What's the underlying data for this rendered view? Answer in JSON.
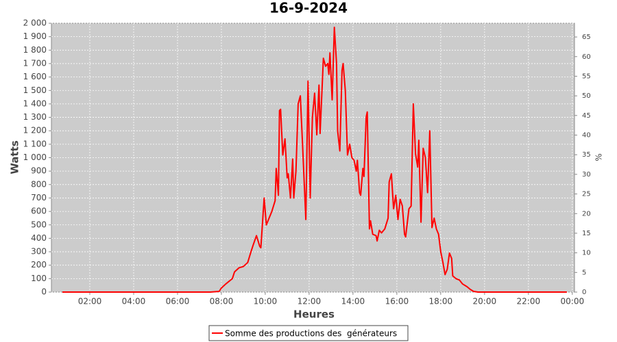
{
  "chart_data": {
    "type": "line",
    "title": "16-9-2024",
    "x_label": "Heures",
    "y_label": "Watts",
    "y2_label": "%",
    "x": [
      0.75,
      7.5,
      7.9,
      8.0,
      8.2,
      8.5,
      8.6,
      8.8,
      9.0,
      9.2,
      9.35,
      9.45,
      9.6,
      9.75,
      9.8,
      9.95,
      10.05,
      10.15,
      10.3,
      10.45,
      10.5,
      10.6,
      10.65,
      10.7,
      10.8,
      10.9,
      11.0,
      11.05,
      11.15,
      11.25,
      11.3,
      11.4,
      11.5,
      11.6,
      11.7,
      11.85,
      11.95,
      12.05,
      12.15,
      12.25,
      12.35,
      12.45,
      12.5,
      12.6,
      12.65,
      12.75,
      12.85,
      12.9,
      12.95,
      13.05,
      13.15,
      13.25,
      13.3,
      13.4,
      13.5,
      13.55,
      13.65,
      13.75,
      13.85,
      13.95,
      14.05,
      14.15,
      14.2,
      14.3,
      14.35,
      14.45,
      14.5,
      14.6,
      14.65,
      14.75,
      14.8,
      14.9,
      15.05,
      15.1,
      15.2,
      15.3,
      15.45,
      15.6,
      15.65,
      15.75,
      15.85,
      15.95,
      16.05,
      16.15,
      16.25,
      16.35,
      16.4,
      16.55,
      16.65,
      16.75,
      16.85,
      16.95,
      17.0,
      17.1,
      17.2,
      17.3,
      17.4,
      17.5,
      17.6,
      17.7,
      17.8,
      17.9,
      18.0,
      18.1,
      18.2,
      18.3,
      18.4,
      18.5,
      18.55,
      18.7,
      18.85,
      19.0,
      19.2,
      19.35,
      19.5,
      19.7,
      23.75
    ],
    "series": [
      {
        "name": "Somme des productions des  générateurs",
        "color": "#ff0000",
        "values": [
          0,
          0,
          5,
          30,
          60,
          100,
          150,
          180,
          190,
          220,
          300,
          350,
          420,
          340,
          330,
          700,
          500,
          540,
          600,
          680,
          920,
          720,
          1350,
          1360,
          1020,
          1140,
          850,
          880,
          700,
          990,
          700,
          900,
          1400,
          1460,
          1100,
          540,
          1570,
          700,
          1300,
          1480,
          1170,
          1540,
          1180,
          1550,
          1740,
          1680,
          1700,
          1620,
          1780,
          1430,
          1970,
          1700,
          1200,
          1050,
          1650,
          1700,
          1500,
          1020,
          1100,
          1000,
          980,
          900,
          980,
          740,
          720,
          920,
          860,
          1300,
          1340,
          470,
          530,
          430,
          420,
          380,
          460,
          440,
          470,
          550,
          820,
          880,
          620,
          720,
          540,
          690,
          640,
          430,
          410,
          620,
          640,
          1400,
          1030,
          930,
          1130,
          520,
          1070,
          1000,
          740,
          1200,
          480,
          550,
          470,
          430,
          300,
          220,
          130,
          170,
          290,
          250,
          120,
          100,
          90,
          60,
          40,
          20,
          5,
          0,
          0
        ]
      }
    ],
    "xlim": [
      0.25,
      24.1
    ],
    "xticks": [
      {
        "value": 2,
        "label": "02:00"
      },
      {
        "value": 4,
        "label": "04:00"
      },
      {
        "value": 6,
        "label": "06:00"
      },
      {
        "value": 8,
        "label": "08:00"
      },
      {
        "value": 10,
        "label": "10:00"
      },
      {
        "value": 12,
        "label": "12:00"
      },
      {
        "value": 14,
        "label": "14:00"
      },
      {
        "value": 16,
        "label": "16:00"
      },
      {
        "value": 18,
        "label": "18:00"
      },
      {
        "value": 20,
        "label": "20:00"
      },
      {
        "value": 22,
        "label": "22:00"
      },
      {
        "value": 24,
        "label": "00:00"
      }
    ],
    "ylim": [
      0,
      2000
    ],
    "yticks": [
      0,
      100,
      200,
      300,
      400,
      500,
      600,
      700,
      800,
      900,
      {
        "value": 1000,
        "label": "1 000"
      },
      {
        "value": 1100,
        "label": "1 100"
      },
      {
        "value": 1200,
        "label": "1 200"
      },
      {
        "value": 1300,
        "label": "1 300"
      },
      {
        "value": 1400,
        "label": "1 400"
      },
      {
        "value": 1500,
        "label": "1 500"
      },
      {
        "value": 1600,
        "label": "1 600"
      },
      {
        "value": 1700,
        "label": "1 700"
      },
      {
        "value": 1800,
        "label": "1 800"
      },
      {
        "value": 1900,
        "label": "1 900"
      },
      {
        "value": 2000,
        "label": "2 000"
      }
    ],
    "y2lim": [
      0,
      68.5
    ],
    "y2ticks": [
      0,
      5,
      10,
      15,
      20,
      25,
      30,
      35,
      40,
      45,
      50,
      55,
      60,
      65
    ],
    "grid": true
  }
}
